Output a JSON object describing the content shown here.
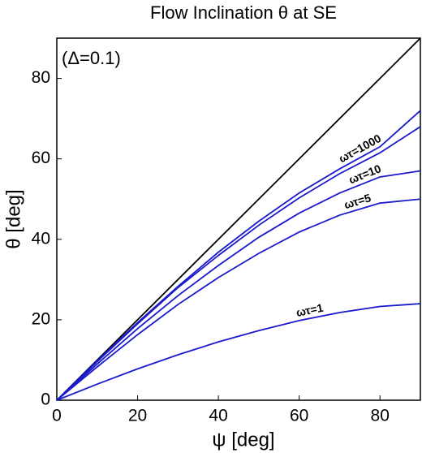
{
  "chart_data": {
    "type": "line",
    "title": "Flow Inclination θ at SE",
    "annotation": "(Δ=0.1)",
    "x_label": "ψ [deg]",
    "y_label": "θ [deg]",
    "x": [
      0,
      10,
      20,
      30,
      40,
      50,
      60,
      70,
      80,
      90
    ],
    "reference_line": {
      "color": "#000000",
      "x": [
        0,
        90
      ],
      "values": [
        0,
        90
      ]
    },
    "series": [
      {
        "name": "ωτ=1000",
        "color": "#1a1acc",
        "values": [
          0,
          9.8,
          19.3,
          28.3,
          36.8,
          44.5,
          51.5,
          57.5,
          63,
          72
        ]
      },
      {
        "name": null,
        "color": "#1a1acc",
        "values": [
          0,
          9.6,
          19,
          28,
          36,
          43.5,
          50.3,
          56.3,
          61.5,
          68
        ]
      },
      {
        "name": "ωτ=10",
        "color": "#1a1acc",
        "values": [
          0,
          9,
          17.8,
          26,
          33.5,
          40.5,
          46.5,
          51.5,
          55.5,
          57
        ]
      },
      {
        "name": "ωτ=5",
        "color": "#1a1acc",
        "values": [
          0,
          8.3,
          16.3,
          23.8,
          30.5,
          36.5,
          41.8,
          46,
          49,
          50
        ]
      },
      {
        "name": "ωτ=1",
        "color": "#1a1acc",
        "values": [
          0,
          4,
          7.8,
          11.3,
          14.5,
          17.3,
          19.8,
          21.8,
          23.3,
          24
        ]
      }
    ],
    "xlim": [
      0,
      90
    ],
    "ylim": [
      0,
      90
    ],
    "xticks": [
      0,
      20,
      40,
      60,
      80
    ],
    "yticks": [
      0,
      20,
      40,
      60,
      80
    ]
  }
}
